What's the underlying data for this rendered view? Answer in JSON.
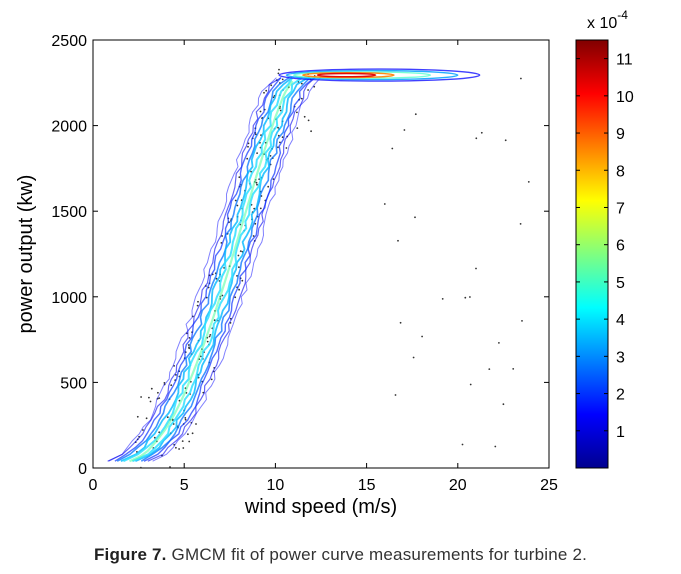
{
  "chart_data": {
    "type": "contour",
    "xlabel": "wind speed (m/s)",
    "ylabel": "power output (kw)",
    "xlim": [
      0,
      25
    ],
    "ylim": [
      0,
      2500
    ],
    "x_ticks": [
      "0",
      "5",
      "10",
      "15",
      "20",
      "25"
    ],
    "y_ticks": [
      "0",
      "500",
      "1000",
      "1500",
      "2000",
      "2500"
    ],
    "colorbar": {
      "multiplier_base": "x 10",
      "multiplier_exponent": "-4",
      "range": [
        0,
        11.5
      ],
      "ticks": [
        "1",
        "2",
        "3",
        "4",
        "5",
        "6",
        "7",
        "8",
        "9",
        "10",
        "11"
      ]
    },
    "curve": {
      "x": [
        2.0,
        2.5,
        3.0,
        3.5,
        4.0,
        4.5,
        5.0,
        5.5,
        6.0,
        6.5,
        7.0,
        7.5,
        8.0,
        8.5,
        9.0,
        9.5,
        10.0,
        10.5,
        11.0,
        11.5,
        12.0,
        13.0,
        14.0,
        15.0,
        16.0,
        17.0,
        18.0,
        19.0,
        20.0,
        21.0
      ],
      "y": [
        40,
        60,
        100,
        160,
        230,
        320,
        430,
        560,
        700,
        850,
        1010,
        1180,
        1360,
        1540,
        1720,
        1890,
        2050,
        2190,
        2270,
        2290,
        2295,
        2295,
        2295,
        2295,
        2295,
        2295,
        2295,
        2295,
        2295,
        2295
      ]
    },
    "hotspot": {
      "x": [
        11.5,
        16.5
      ],
      "y": 2295
    }
  },
  "caption": {
    "lead": "Figure 7.",
    "text": " GMCM fit of power curve measurements for turbine 2."
  }
}
